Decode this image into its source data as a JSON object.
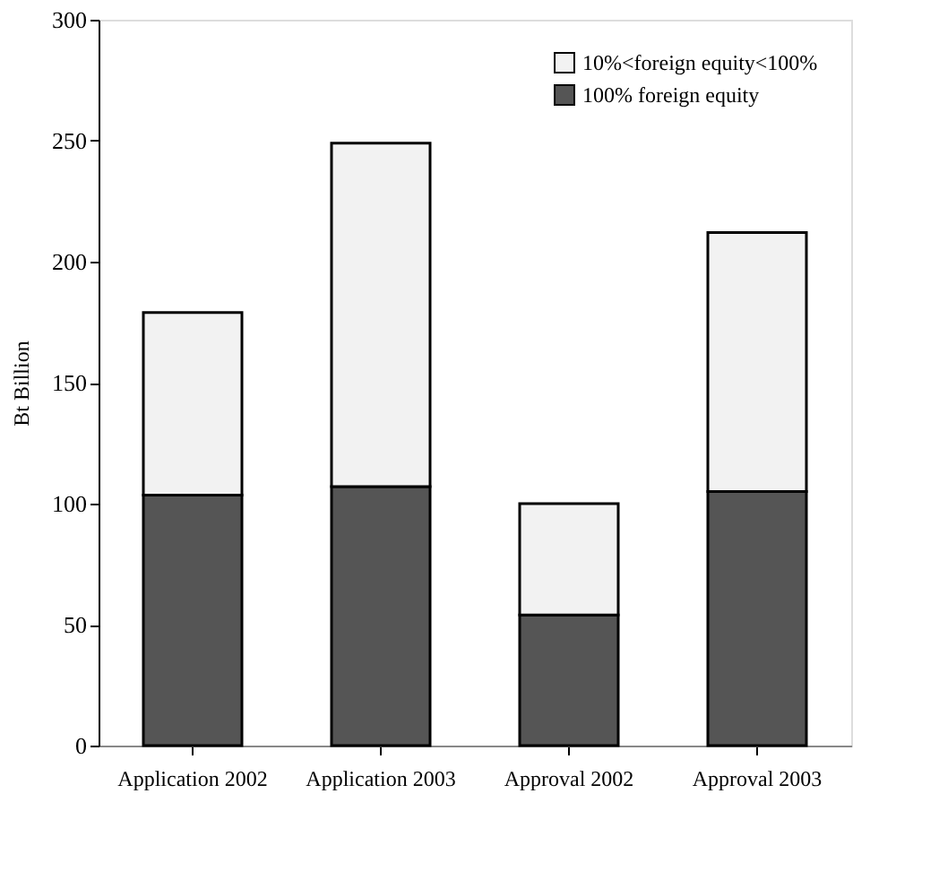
{
  "chart_data": {
    "type": "bar",
    "stacked": true,
    "ylabel": "Bt Billion",
    "categories": [
      "Application 2002",
      "Application 2003",
      "Approval 2002",
      "Approval 2003"
    ],
    "series": [
      {
        "name": "100% foreign equity",
        "color": "#555555",
        "values": [
          103.5,
          107,
          54,
          105
        ]
      },
      {
        "name": "10%<foreign equity<100%",
        "color": "#f2f2f2",
        "values": [
          75.5,
          142,
          46,
          107
        ]
      }
    ],
    "ylim": [
      0,
      300
    ],
    "yticks": [
      0,
      50,
      100,
      150,
      200,
      250,
      300
    ],
    "grid": false,
    "legend": "top right"
  }
}
